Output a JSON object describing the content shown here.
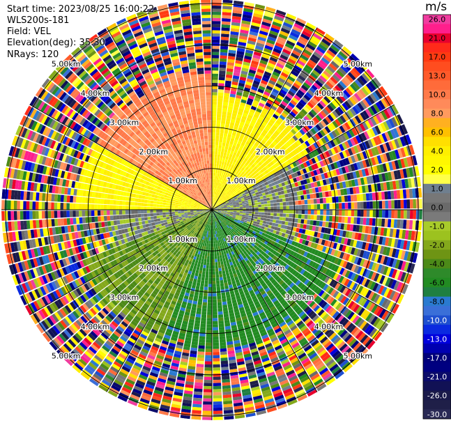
{
  "info": {
    "start_time": "Start time: 2023/08/25 16:00:22",
    "site": "WLS200s-181",
    "field": "Field: VEL",
    "elevation": "Elevation(deg): 35.30",
    "nrays": "NRays: 120"
  },
  "colorbar": {
    "unit": "m/s",
    "bins": [
      {
        "label": "26.0",
        "color": "#f03c9f"
      },
      {
        "label": "",
        "color": "#ff1f8c"
      },
      {
        "label": "21.0",
        "color": "#e8002d"
      },
      {
        "label": "",
        "color": "#ff2a1a"
      },
      {
        "label": "17.0",
        "color": "#ff3a12"
      },
      {
        "label": "",
        "color": "#ff4d1f"
      },
      {
        "label": "13.0",
        "color": "#ff5a2a"
      },
      {
        "label": "",
        "color": "#ff6b3a"
      },
      {
        "label": "10.0",
        "color": "#ff7a4a"
      },
      {
        "label": "",
        "color": "#ff8a5a"
      },
      {
        "label": "8.0",
        "color": "#ff9a5e"
      },
      {
        "label": "",
        "color": "#ffb020"
      },
      {
        "label": "6.0",
        "color": "#ffc000"
      },
      {
        "label": "",
        "color": "#ffdf00"
      },
      {
        "label": "4.0",
        "color": "#ffef00"
      },
      {
        "label": "",
        "color": "#fff700"
      },
      {
        "label": "2.0",
        "color": "#ffff00"
      },
      {
        "label": "",
        "color": "#ffff4a"
      },
      {
        "label": "1.0",
        "color": "#6f7f8f"
      },
      {
        "label": "",
        "color": "#777777"
      },
      {
        "label": "0.0",
        "color": "#6a6a6a"
      },
      {
        "label": "",
        "color": "#7a7a7a"
      },
      {
        "label": "-1.0",
        "color": "#a8cc2a"
      },
      {
        "label": "",
        "color": "#9cc21f"
      },
      {
        "label": "-2.0",
        "color": "#84a81c"
      },
      {
        "label": "",
        "color": "#6e9414"
      },
      {
        "label": "-4.0",
        "color": "#4c8a18"
      },
      {
        "label": "",
        "color": "#2e8a2a"
      },
      {
        "label": "-6.0",
        "color": "#228b22"
      },
      {
        "label": "",
        "color": "#1f7f40"
      },
      {
        "label": "-8.0",
        "color": "#2a7ad0"
      },
      {
        "label": "",
        "color": "#3a6fd8"
      },
      {
        "label": "-10.0",
        "color": "#1e4fd0"
      },
      {
        "label": "",
        "color": "#0a2ae0"
      },
      {
        "label": "-13.0",
        "color": "#0000dd"
      },
      {
        "label": "",
        "color": "#0000b0"
      },
      {
        "label": "-17.0",
        "color": "#00007a"
      },
      {
        "label": "",
        "color": "#000080"
      },
      {
        "label": "-21.0",
        "color": "#0b0b6a"
      },
      {
        "label": "",
        "color": "#111155"
      },
      {
        "label": "-26.0",
        "color": "#1a1a4a"
      },
      {
        "label": "",
        "color": "#1f1f48"
      },
      {
        "label": "-30.0",
        "color": "#2a2a55"
      }
    ]
  },
  "chart_data": {
    "type": "heatmap",
    "plot": "PPI radial velocity scan",
    "title": "",
    "field": "VEL",
    "nrays": 120,
    "elevation_deg": 35.3,
    "range_rings_km": [
      1.0,
      2.0,
      3.0,
      4.0,
      5.0
    ],
    "ring_labels": [
      "1.00km",
      "2.00km",
      "3.00km",
      "4.00km",
      "5.00km"
    ],
    "max_range_km": 5.1,
    "spokes_deg": [
      0,
      30,
      60,
      90,
      120,
      150,
      180,
      210,
      240,
      270,
      300,
      330
    ],
    "colorbar_ticks": [
      26.0,
      21.0,
      17.0,
      13.0,
      10.0,
      8.0,
      6.0,
      4.0,
      2.0,
      1.0,
      0.0,
      -1.0,
      -2.0,
      -4.0,
      -6.0,
      -8.0,
      -10.0,
      -13.0,
      -17.0,
      -21.0,
      -26.0,
      -30.0
    ],
    "velocity_sectors": [
      {
        "azimuth_deg": [
          300,
          360
        ],
        "value": 9.0,
        "valid_to_km": 3.3
      },
      {
        "azimuth_deg": [
          0,
          60
        ],
        "value": 3.5,
        "valid_to_km": 2.7
      },
      {
        "azimuth_deg": [
          60,
          110
        ],
        "value": 0.0,
        "valid_to_km": 2.1
      },
      {
        "azimuth_deg": [
          110,
          200
        ],
        "value": -6.0,
        "valid_to_km": 3.3
      },
      {
        "azimuth_deg": [
          200,
          250
        ],
        "value": -3.0,
        "valid_to_km": 3.3
      },
      {
        "azimuth_deg": [
          250,
          270
        ],
        "value": 0.0,
        "valid_to_km": 2.5
      },
      {
        "azimuth_deg": [
          270,
          300
        ],
        "value": 3.0,
        "valid_to_km": 3.3
      }
    ],
    "noise_beyond_valid_range": true
  }
}
